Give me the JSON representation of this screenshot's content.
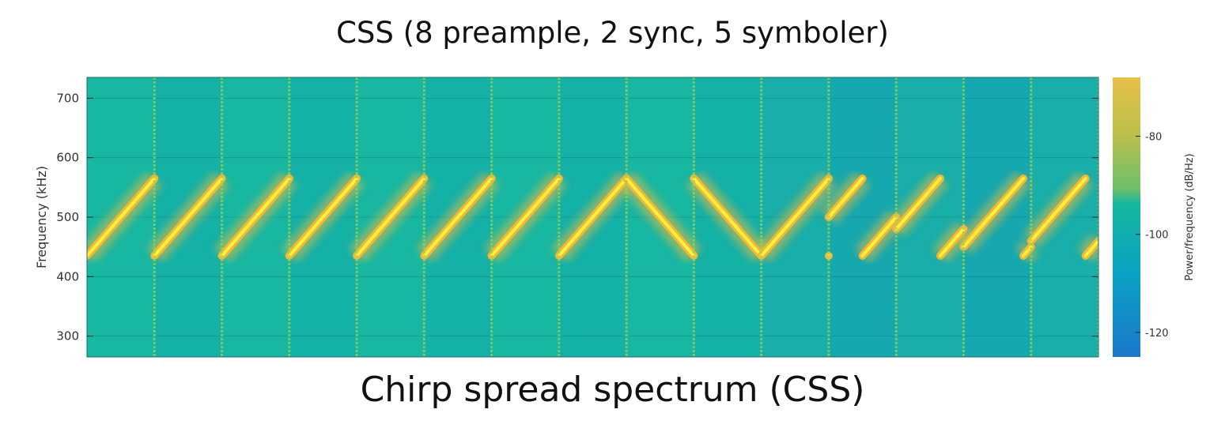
{
  "chart_data": {
    "type": "heatmap",
    "title": "CSS (8 preample, 2 sync, 5 symboler)",
    "caption": "Chirp spread spectrum (CSS)",
    "ylabel": "Frequency (kHz)",
    "xlabel": "",
    "ylim": [
      265,
      735
    ],
    "yticks": [
      300,
      400,
      500,
      600,
      700
    ],
    "grid": true,
    "colorbar": {
      "label": "Power/frequency (dB/Hz)",
      "range": [
        -125,
        -68
      ],
      "ticks": [
        -80,
        -100,
        -120
      ],
      "colors": [
        "#1a78cc",
        "#0aa2c4",
        "#16b79e",
        "#6cc06a",
        "#bdbf4a",
        "#e6c14a"
      ]
    },
    "symbols": [
      {
        "segment": "preamble",
        "type": "up",
        "f0": 435,
        "f1": 565
      },
      {
        "segment": "preamble",
        "type": "up",
        "f0": 435,
        "f1": 565
      },
      {
        "segment": "preamble",
        "type": "up",
        "f0": 435,
        "f1": 565
      },
      {
        "segment": "preamble",
        "type": "up",
        "f0": 435,
        "f1": 565
      },
      {
        "segment": "preamble",
        "type": "up",
        "f0": 435,
        "f1": 565
      },
      {
        "segment": "preamble",
        "type": "up",
        "f0": 435,
        "f1": 565
      },
      {
        "segment": "preamble",
        "type": "up",
        "f0": 435,
        "f1": 565
      },
      {
        "segment": "preamble",
        "type": "up",
        "f0": 435,
        "f1": 565
      },
      {
        "segment": "sync",
        "type": "down",
        "f0": 565,
        "f1": 435
      },
      {
        "segment": "sync",
        "type": "down",
        "f0": 565,
        "f1": 435
      },
      {
        "segment": "data",
        "type": "data",
        "start": 435,
        "f0": 435,
        "f1": 565
      },
      {
        "segment": "data",
        "type": "data",
        "start": 500,
        "f0": 435,
        "f1": 565
      },
      {
        "segment": "data",
        "type": "data",
        "start": 480,
        "f0": 435,
        "f1": 565
      },
      {
        "segment": "data",
        "type": "data",
        "start": 450,
        "f0": 435,
        "f1": 565
      },
      {
        "segment": "data",
        "type": "data",
        "start": 460,
        "f0": 435,
        "f1": 565
      }
    ],
    "colors": {
      "background": "#16b7a4",
      "chirp_core": "#fff23a",
      "chirp_glow": "#e6b93e",
      "grid": "#0d6f79"
    }
  }
}
